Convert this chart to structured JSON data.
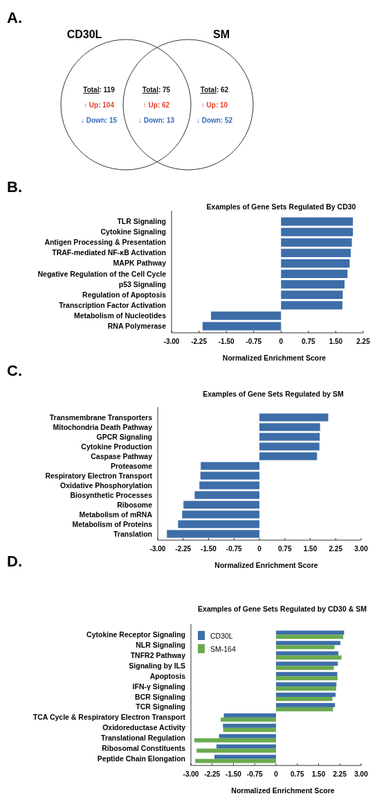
{
  "chart_data": [
    {
      "type": "other",
      "categories": [
        "CD30L",
        "SM"
      ],
      "annotations": [
        "A.",
        "Total: 119",
        "↑ Up: 104",
        "↓ Down: 15",
        "Total: 75",
        "↑ Up: 62",
        "↓ Down: 13",
        "Total: 62",
        "↑ Up: 10",
        "↓ Down: 52"
      ]
    },
    {
      "type": "bar",
      "orientation": "horizontal",
      "title": "Examples of Gene Sets Regulated By CD30",
      "xlabel": "Normalized Enrichment Score",
      "annotations": [
        "B."
      ],
      "categories": [
        "TLR Signaling",
        "Cytokine Signaling",
        "Antigen Processing & Presentation",
        "TRAF-mediated NF-κB Activation",
        "MAPK Pathway",
        "Negative Regulation of the Cell Cycle",
        "p53 Signaling",
        "Regulation of Apoptosis",
        "Transcription Factor Activation",
        "Metabolism of Nucleotides",
        "RNA Polymerase"
      ],
      "color": "#3d6ea8",
      "values": [
        1.97,
        1.97,
        1.94,
        1.91,
        1.88,
        1.82,
        1.74,
        1.69,
        1.68,
        -1.92,
        -2.15
      ],
      "xlim": [
        -3,
        2.25
      ],
      "xticks": [
        {
          "value": -3,
          "label": "-3.00"
        },
        {
          "value": -2.25,
          "label": "-2.25"
        },
        {
          "value": -1.5,
          "label": "-1.50"
        },
        {
          "value": -0.75,
          "label": "-0.75"
        },
        0,
        0.75,
        {
          "value": 1.5,
          "label": "1.50"
        },
        2.25
      ],
      "grid": false,
      "legend": false
    },
    {
      "type": "bar",
      "orientation": "horizontal",
      "title": "Examples of Gene Sets Regulated by SM",
      "xlabel": "Normalized Enrichment Score",
      "annotations": [
        "C."
      ],
      "categories": [
        "Transmembrane Transporters",
        "Mitochondria Death Pathway",
        "GPCR Signaling",
        "Cytokine Production",
        "Caspase Pathway",
        "Proteasome",
        "Respiratory Electron Transport",
        "Oxidative Phosphorylation",
        "Biosynthetic Processes",
        "Ribosome",
        "Metabolism of mRNA",
        "Metabolism of Proteins",
        "Translation"
      ],
      "color": "#3d6ea8",
      "values": [
        2.03,
        1.79,
        1.78,
        1.77,
        1.7,
        -1.73,
        -1.74,
        -1.77,
        -1.91,
        -2.24,
        -2.28,
        -2.4,
        -2.73
      ],
      "xlim": [
        -3,
        3
      ],
      "xticks": [
        {
          "value": -3,
          "label": "-3.00"
        },
        {
          "value": -2.25,
          "label": "-2.25"
        },
        {
          "value": -1.5,
          "label": "-1.50"
        },
        {
          "value": -0.75,
          "label": "-0.75"
        },
        0,
        0.75,
        {
          "value": 1.5,
          "label": "1.50"
        },
        2.25,
        {
          "value": 3,
          "label": "3.00"
        }
      ],
      "grid": false,
      "legend": false
    },
    {
      "type": "bar",
      "orientation": "horizontal",
      "title": "Examples of Gene Sets Regulated by CD30 & SM",
      "xlabel": "Normalized Enrichment Score",
      "annotations": [
        "D."
      ],
      "categories": [
        "Cytokine Receptor Signaling",
        "NLR Signaling",
        "TNFR2 Pathway",
        "Signaling by ILS",
        "Apoptosis",
        "IFN-γ Signaling",
        "BCR Signaling",
        "TCR Signaling",
        "TCA Cycle & Respiratory Electron Transport",
        "Oxidoreductase Activity",
        "Translational Regulation",
        "Ribosomal Constituents",
        "Peptide Chain Elongation"
      ],
      "series": [
        {
          "name": "CD30L",
          "color": "#3d6ea8",
          "values": [
            2.4,
            2.27,
            2.2,
            2.18,
            2.16,
            2.13,
            2.1,
            2.08,
            -1.84,
            -1.87,
            -2.01,
            -2.1,
            -2.17
          ]
        },
        {
          "name": "SM-164",
          "color": "#6aaa4f",
          "values": [
            2.37,
            2.06,
            2.31,
            2.04,
            2.17,
            2.12,
            1.99,
            2.01,
            -1.95,
            -1.86,
            -2.88,
            -2.8,
            -2.85
          ]
        }
      ],
      "xlim": [
        -3,
        3
      ],
      "xticks": [
        {
          "value": -3,
          "label": "-3.00"
        },
        {
          "value": -2.25,
          "label": "-2.25"
        },
        {
          "value": -1.5,
          "label": "-1.50"
        },
        {
          "value": -0.75,
          "label": "-0.75"
        },
        0,
        0.75,
        {
          "value": 1.5,
          "label": "1.50"
        },
        2.25,
        {
          "value": 3,
          "label": "3.00"
        }
      ],
      "grid": false,
      "legend": "top left"
    }
  ]
}
